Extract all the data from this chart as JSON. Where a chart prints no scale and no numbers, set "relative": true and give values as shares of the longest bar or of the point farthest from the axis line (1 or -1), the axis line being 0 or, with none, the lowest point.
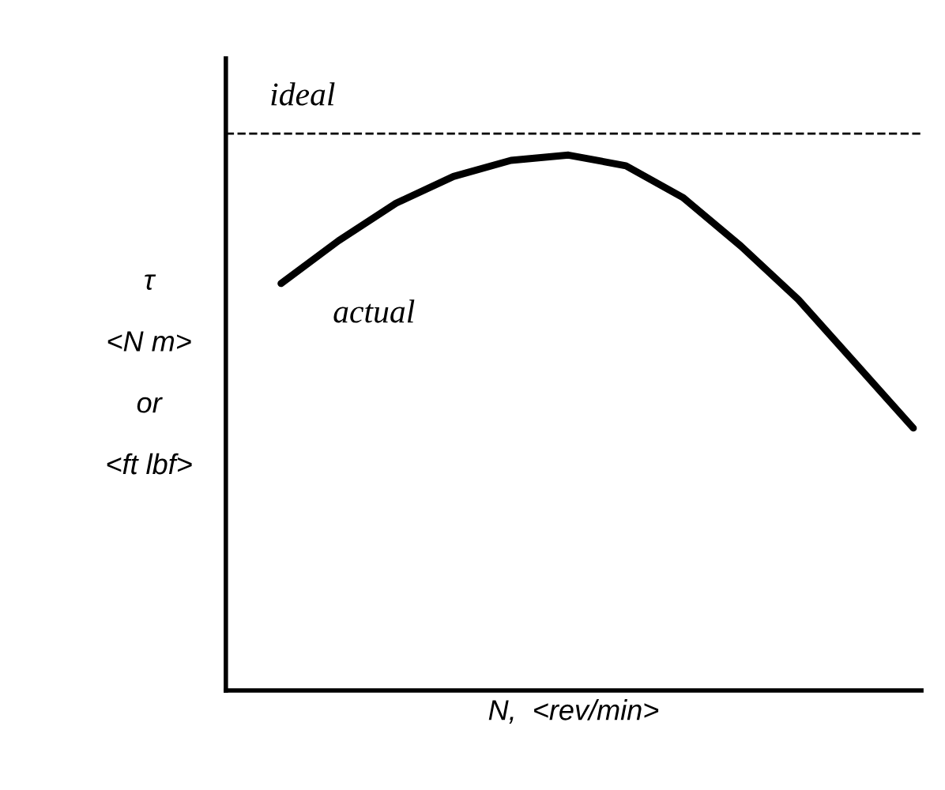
{
  "chart_data": {
    "type": "line",
    "relative": true,
    "xlabel": "N,  <rev/min>",
    "ylabel": "τ\n\n<N m>\n\nor\n\n<ft lbf>",
    "categories": [
      null,
      null,
      null,
      null,
      null,
      null,
      null,
      null,
      null,
      null,
      null,
      null
    ],
    "series": [
      {
        "name": "actual",
        "color": "#000000",
        "values": [
          0.76,
          0.84,
          0.91,
          0.96,
          0.99,
          1.0,
          0.98,
          0.92,
          0.83,
          0.73,
          0.61,
          0.49
        ]
      }
    ],
    "ref_lines": [
      {
        "axis": "y",
        "value": 1.04,
        "label": "ideal",
        "color": "#000000",
        "line_style": "dashed"
      }
    ],
    "line_style": "solid",
    "marker": "none",
    "grid": false,
    "legend": false,
    "tick_labels": false
  }
}
